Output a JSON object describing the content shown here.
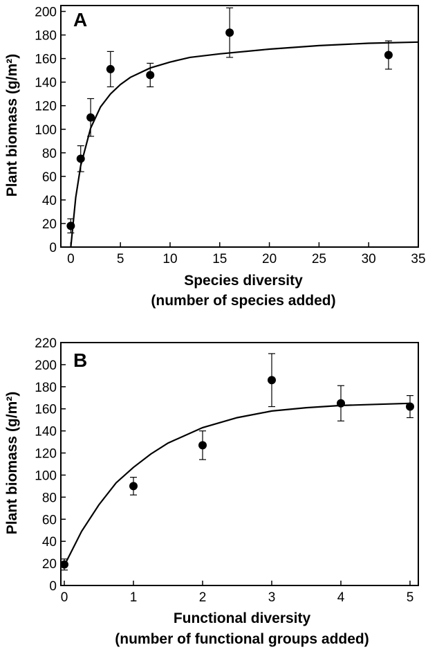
{
  "chart_data": [
    {
      "type": "scatter",
      "panel_label": "A",
      "title": "",
      "xlabel": "Species diversity",
      "xlabel_line2": "(number of species added)",
      "ylabel": "Plant biomass (g/m²)",
      "xlim": [
        -1,
        35
      ],
      "ylim": [
        0,
        205
      ],
      "xticks": [
        0,
        5,
        10,
        15,
        20,
        25,
        30,
        35
      ],
      "yticks": [
        0,
        20,
        40,
        60,
        80,
        100,
        120,
        140,
        160,
        180,
        200
      ],
      "grid": false,
      "legend": "none",
      "series": [
        {
          "x": [
            0,
            1,
            2,
            4,
            8,
            16,
            32
          ],
          "y": [
            18,
            75,
            110,
            151,
            146,
            182,
            163
          ],
          "error": [
            6,
            11,
            16,
            15,
            10,
            21,
            12
          ]
        }
      ],
      "fit_curve": {
        "x": [
          0,
          0.5,
          1,
          2,
          3,
          4,
          5,
          6,
          8,
          10,
          12,
          15,
          20,
          25,
          30,
          35
        ],
        "y": [
          0,
          42,
          69,
          101,
          119,
          130,
          138,
          144,
          152,
          157,
          161,
          164,
          168,
          171,
          173,
          174
        ]
      }
    },
    {
      "type": "scatter",
      "panel_label": "B",
      "title": "",
      "xlabel": "Functional diversity",
      "xlabel_line2": "(number of functional groups added)",
      "ylabel": "Plant biomass (g/m²)",
      "xlim": [
        -0.05,
        5.12
      ],
      "ylim": [
        0,
        220
      ],
      "xticks": [
        0,
        1,
        2,
        3,
        4,
        5
      ],
      "yticks": [
        0,
        20,
        40,
        60,
        80,
        100,
        120,
        140,
        160,
        180,
        200,
        220
      ],
      "grid": false,
      "legend": "none",
      "series": [
        {
          "x": [
            0,
            1,
            2,
            3,
            4,
            5
          ],
          "y": [
            19,
            90,
            127,
            186,
            165,
            162
          ],
          "error": [
            5,
            8,
            13,
            24,
            16,
            10
          ]
        }
      ],
      "fit_curve": {
        "x": [
          0,
          0.25,
          0.5,
          0.75,
          1,
          1.25,
          1.5,
          2,
          2.5,
          3,
          3.5,
          4,
          4.5,
          5
        ],
        "y": [
          18,
          49,
          73,
          93,
          107,
          119,
          129,
          143,
          152,
          158,
          161,
          163,
          164,
          165
        ]
      }
    }
  ]
}
